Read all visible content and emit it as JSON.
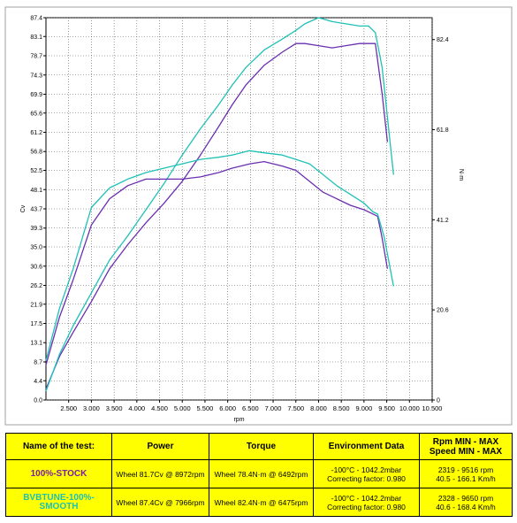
{
  "chart_data": {
    "type": "line",
    "title": "",
    "xlabel": "rpm",
    "ylabel_left": "Cv",
    "ylabel_right": "N·m",
    "xlim": [
      2000,
      10500
    ],
    "ylim_left": [
      0,
      87.4
    ],
    "ylim_right": [
      0,
      87.4
    ],
    "x_ticks": [
      "2.500",
      "3.000",
      "3.500",
      "4.000",
      "4.500",
      "5.000",
      "5.500",
      "6.000",
      "6.500",
      "7.000",
      "7.500",
      "8.000",
      "8.500",
      "9.000",
      "9.500",
      "10.000",
      "10.500"
    ],
    "y_ticks_left": [
      "0.0",
      "4.4",
      "8.7",
      "13.1",
      "17.5",
      "21.9",
      "26.2",
      "30.6",
      "35.0",
      "39.3",
      "43.7",
      "48.1",
      "52.5",
      "56.8",
      "61.2",
      "65.6",
      "69.9",
      "74.3",
      "78.7",
      "83.1",
      "87.4"
    ],
    "y_ticks_right": [
      "0",
      "20.6",
      "41.2",
      "61.8",
      "82.4"
    ],
    "grid": true,
    "legend": "none",
    "series": [
      {
        "name": "100%-STOCK",
        "measure": "power",
        "color": "#6a2fb0",
        "x": [
          2000,
          2300,
          2600,
          3000,
          3400,
          3800,
          4200,
          4600,
          5000,
          5400,
          5800,
          6100,
          6400,
          6800,
          7200,
          7500,
          7700,
          8000,
          8300,
          8600,
          8900,
          9100,
          9250,
          9400,
          9516
        ],
        "y": [
          2.5,
          10,
          15.5,
          22.5,
          30,
          35.5,
          40.5,
          45,
          50,
          56,
          62.5,
          67.5,
          72,
          76.5,
          79.5,
          81.5,
          81.5,
          81,
          80.5,
          81,
          81.5,
          81.5,
          81.5,
          70,
          59
        ]
      },
      {
        "name": "BVBTUNE-100%-SMOOTH",
        "measure": "power",
        "color": "#1fc1b7",
        "x": [
          2000,
          2300,
          2600,
          3000,
          3400,
          3800,
          4200,
          4600,
          5000,
          5400,
          5800,
          6100,
          6400,
          6800,
          7200,
          7500,
          7700,
          8000,
          8300,
          8600,
          8900,
          9100,
          9250,
          9400,
          9650
        ],
        "y": [
          2,
          10.5,
          17,
          24.5,
          32,
          37.5,
          43.5,
          49.5,
          56,
          62,
          67.5,
          72,
          76,
          80,
          82.5,
          84.5,
          86,
          87.4,
          86.5,
          86,
          85.5,
          85.5,
          84,
          76,
          51.5
        ]
      },
      {
        "name": "100%-STOCK",
        "measure": "torque",
        "color": "#6a2fb0",
        "x": [
          2000,
          2300,
          2600,
          3000,
          3400,
          3800,
          4200,
          4600,
          5000,
          5400,
          5800,
          6100,
          6492,
          6800,
          7200,
          7500,
          7800,
          8100,
          8400,
          8700,
          9000,
          9200,
          9300,
          9400,
          9516
        ],
        "y": [
          8,
          19,
          27.5,
          40,
          46,
          49,
          50.5,
          50.5,
          50.5,
          51,
          52,
          53,
          54,
          54.5,
          53.5,
          52.5,
          50,
          47.5,
          46,
          44.5,
          43.5,
          42.5,
          42,
          37,
          30
        ]
      },
      {
        "name": "BVBTUNE-100%-SMOOTH",
        "measure": "torque",
        "color": "#1fc1b7",
        "x": [
          2000,
          2300,
          2600,
          3000,
          3400,
          3800,
          4200,
          4600,
          5000,
          5400,
          5800,
          6100,
          6475,
          6800,
          7200,
          7500,
          7800,
          8100,
          8400,
          8700,
          9000,
          9200,
          9300,
          9450,
          9650
        ],
        "y": [
          9,
          21,
          30,
          44,
          48.5,
          50.5,
          52,
          53,
          54,
          55,
          55.5,
          56,
          57,
          56.5,
          56,
          55,
          54,
          51.5,
          49,
          47,
          45,
          43,
          42.5,
          37,
          26
        ]
      }
    ]
  },
  "table": {
    "headers": {
      "name": "Name of the test:",
      "power": "Power",
      "torque": "Torque",
      "env": "Environment Data",
      "rpm_line1": "Rpm MIN - MAX",
      "rpm_line2": "Speed MIN - MAX"
    },
    "rows": [
      {
        "name": "100%-STOCK",
        "name_color": "#7b1fa2",
        "power": "Wheel 81.7Cv @ 8972rpm",
        "torque": "Wheel 78.4N·m @ 6492rpm",
        "env1": "-100°C - 1042.2mbar",
        "env2": "Correcting factor: 0.980",
        "rpm": "2319 - 9516 rpm",
        "speed": "40.5 - 166.1 Km/h"
      },
      {
        "name": "BVBTUNE-100%-SMOOTH",
        "name_color": "#1fc1b7",
        "power": "Wheel 87.4Cv @ 7966rpm",
        "torque": "Wheel 82.4N·m @ 6475rpm",
        "env1": "-100°C - 1042.2mbar",
        "env2": "Correcting factor: 0.980",
        "rpm": "2328 - 9650 rpm",
        "speed": "40.6 - 168.4 Km/h"
      }
    ]
  }
}
